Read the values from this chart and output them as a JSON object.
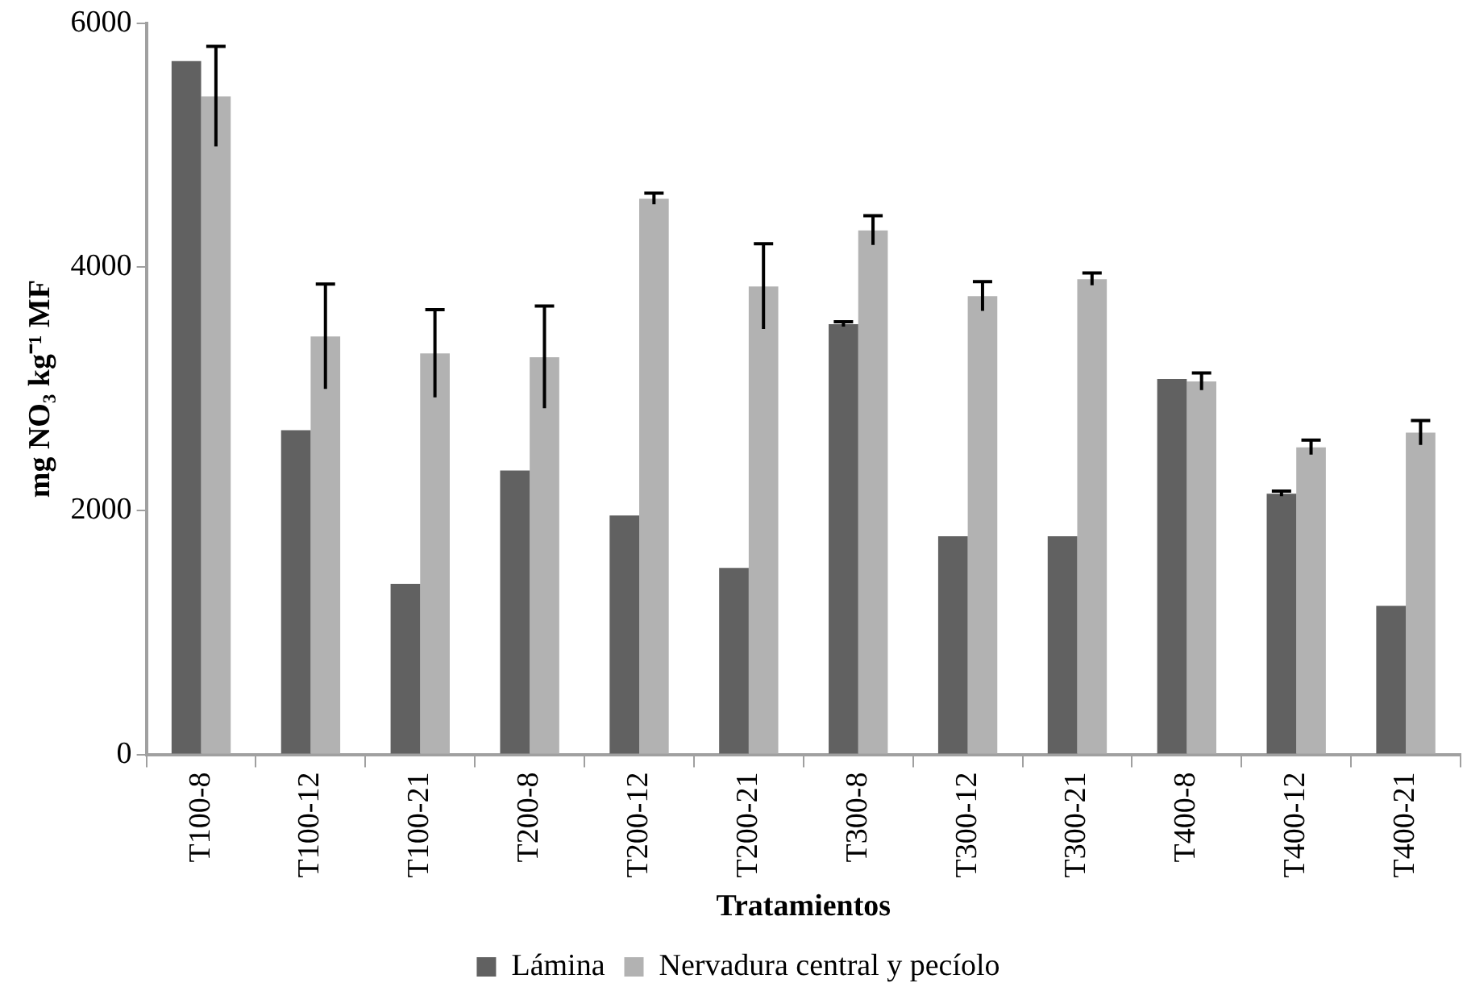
{
  "chart_data": {
    "type": "bar",
    "xlabel": "Tratamientos",
    "ylabel": "mg NO₃ kg⁻¹ MF",
    "categories": [
      "T100-8",
      "T100-12",
      "T100-21",
      "T200-8",
      "T200-12",
      "T200-21",
      "T300-8",
      "T300-12",
      "T300-21",
      "T400-8",
      "T400-12",
      "T400-21"
    ],
    "series": [
      {
        "name": "Lámina",
        "color": "#616161",
        "values": [
          5690,
          2660,
          1400,
          2330,
          1960,
          1530,
          3530,
          1790,
          1790,
          3080,
          2140,
          1220
        ],
        "errors": [
          null,
          null,
          null,
          null,
          null,
          null,
          20,
          null,
          null,
          null,
          20,
          null
        ]
      },
      {
        "name": "Nervadura central y pecíolo",
        "color": "#b2b2b2",
        "values": [
          5400,
          3430,
          3290,
          3260,
          4560,
          3840,
          4300,
          3760,
          3900,
          3060,
          2520,
          2640
        ],
        "errors": [
          410,
          430,
          360,
          420,
          45,
          350,
          120,
          120,
          50,
          70,
          60,
          100
        ]
      }
    ],
    "ylim": [
      0,
      6000
    ],
    "yticks": [
      0,
      2000,
      4000,
      6000
    ],
    "grid": false,
    "legend": "bottom"
  }
}
